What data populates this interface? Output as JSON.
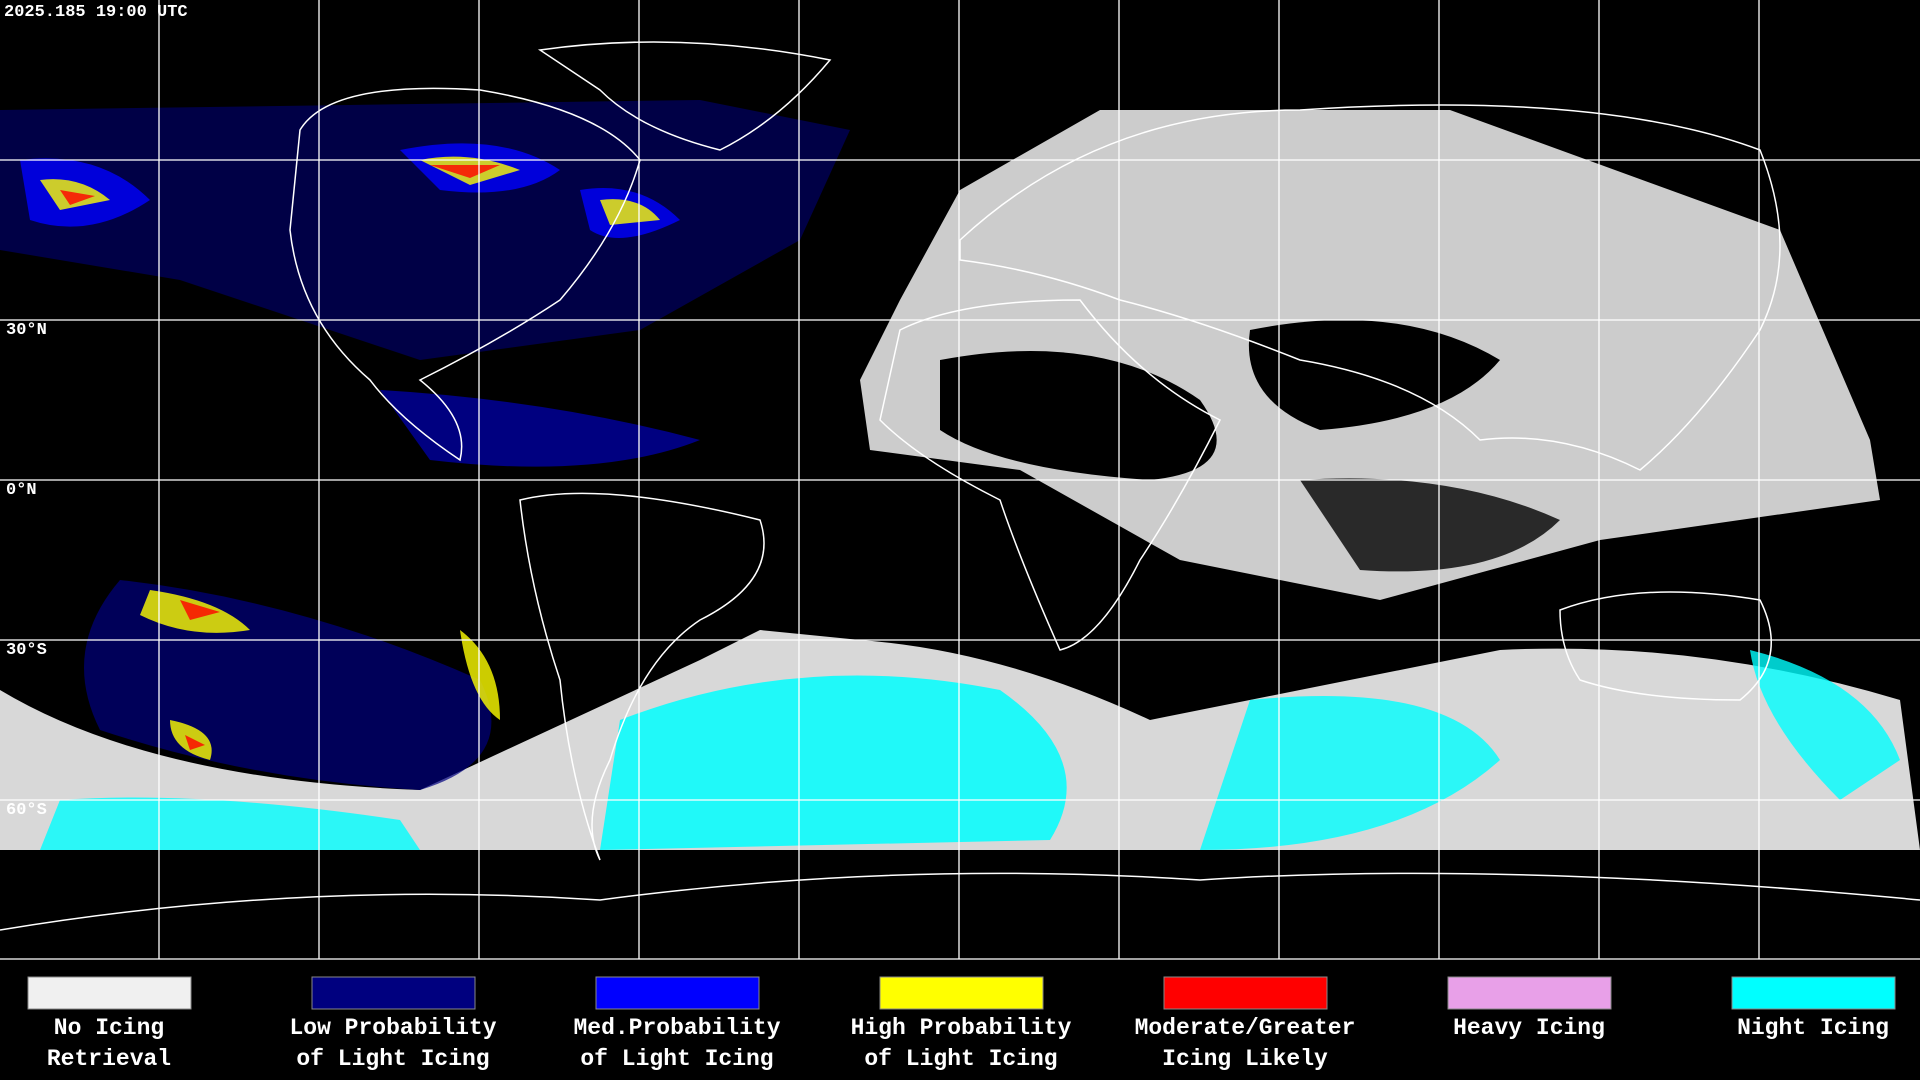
{
  "timestamp": "2025.185 19:00 UTC",
  "latitude_labels": [
    "30°N",
    "0°N",
    "30°S",
    "60°S"
  ],
  "legend": [
    {
      "color": "#f0f0f0",
      "lines": [
        "No Icing",
        "Retrieval"
      ]
    },
    {
      "color": "#00007f",
      "lines": [
        "Low Probability",
        "of Light Icing"
      ]
    },
    {
      "color": "#0000ff",
      "lines": [
        "Med.Probability",
        "of Light Icing"
      ]
    },
    {
      "color": "#ffff00",
      "lines": [
        "High Probability",
        "of Light Icing"
      ]
    },
    {
      "color": "#ff0000",
      "lines": [
        "Moderate/Greater",
        "Icing Likely"
      ]
    },
    {
      "color": "#e8a0e8",
      "lines": [
        "Heavy Icing"
      ]
    },
    {
      "color": "#00ffff",
      "lines": [
        "Night Icing"
      ]
    }
  ]
}
